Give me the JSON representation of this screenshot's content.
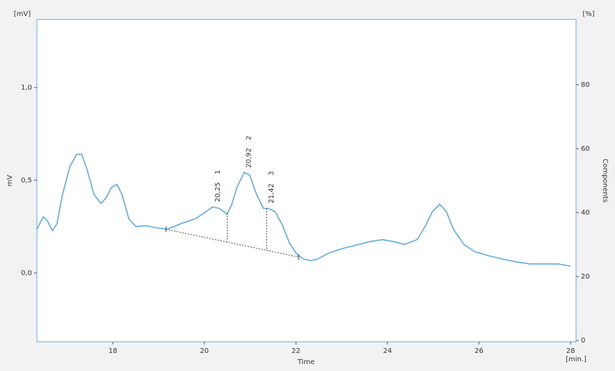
{
  "chart_data": {
    "type": "line",
    "y_unit_label": "[mV]",
    "y2_unit_label": "[%]",
    "x_unit_label": "[min.]",
    "xlabel": "Time",
    "ylabel": "mV",
    "y2label": "Components",
    "xlim": [
      16.34,
      28.12
    ],
    "xticks": [
      18,
      20,
      22,
      24,
      26,
      28
    ],
    "ylim": [
      -0.371,
      1.367
    ],
    "yticks": [
      {
        "value": 0.0,
        "label": "0,0"
      },
      {
        "value": 0.5,
        "label": "0,5"
      },
      {
        "value": 1.0,
        "label": "1,0"
      }
    ],
    "y2lim": [
      -0.4,
      100.4
    ],
    "y2ticks": [
      0,
      20,
      40,
      60,
      80
    ],
    "series": [
      {
        "color": "#5aa9e6",
        "x": [
          16.34,
          16.48,
          16.57,
          16.68,
          16.78,
          16.9,
          17.06,
          17.21,
          17.32,
          17.44,
          17.59,
          17.74,
          17.85,
          17.97,
          18.09,
          18.2,
          18.35,
          18.5,
          18.73,
          18.96,
          19.19,
          19.49,
          19.8,
          20.03,
          20.18,
          20.33,
          20.49,
          20.59,
          20.71,
          20.87,
          20.99,
          21.14,
          21.29,
          21.4,
          21.55,
          21.71,
          21.86,
          22.01,
          22.16,
          22.32,
          22.47,
          22.7,
          23.0,
          23.31,
          23.61,
          23.89,
          24.14,
          24.37,
          24.65,
          24.83,
          24.98,
          25.14,
          25.29,
          25.44,
          25.67,
          25.9,
          26.2,
          26.51,
          26.81,
          27.12,
          27.42,
          27.73,
          28.0
        ],
        "values": [
          0.236,
          0.303,
          0.281,
          0.228,
          0.266,
          0.423,
          0.573,
          0.64,
          0.64,
          0.554,
          0.423,
          0.375,
          0.404,
          0.461,
          0.479,
          0.423,
          0.292,
          0.251,
          0.255,
          0.243,
          0.236,
          0.266,
          0.292,
          0.33,
          0.356,
          0.348,
          0.318,
          0.363,
          0.461,
          0.543,
          0.528,
          0.423,
          0.348,
          0.348,
          0.33,
          0.255,
          0.161,
          0.105,
          0.075,
          0.067,
          0.075,
          0.105,
          0.131,
          0.15,
          0.169,
          0.18,
          0.169,
          0.154,
          0.18,
          0.255,
          0.33,
          0.371,
          0.33,
          0.236,
          0.154,
          0.116,
          0.094,
          0.075,
          0.06,
          0.049,
          0.049,
          0.049,
          0.037
        ]
      }
    ],
    "peaks": [
      {
        "value": 20.25,
        "label": "20,25",
        "number": 1
      },
      {
        "value": 20.92,
        "label": "20,92",
        "number": 2
      },
      {
        "value": 21.42,
        "label": "21,42",
        "number": 3
      }
    ],
    "baseline": {
      "x": [
        19.16,
        22.06
      ],
      "y": [
        0.236,
        0.086
      ]
    },
    "drops": [
      20.5,
      21.36
    ]
  }
}
